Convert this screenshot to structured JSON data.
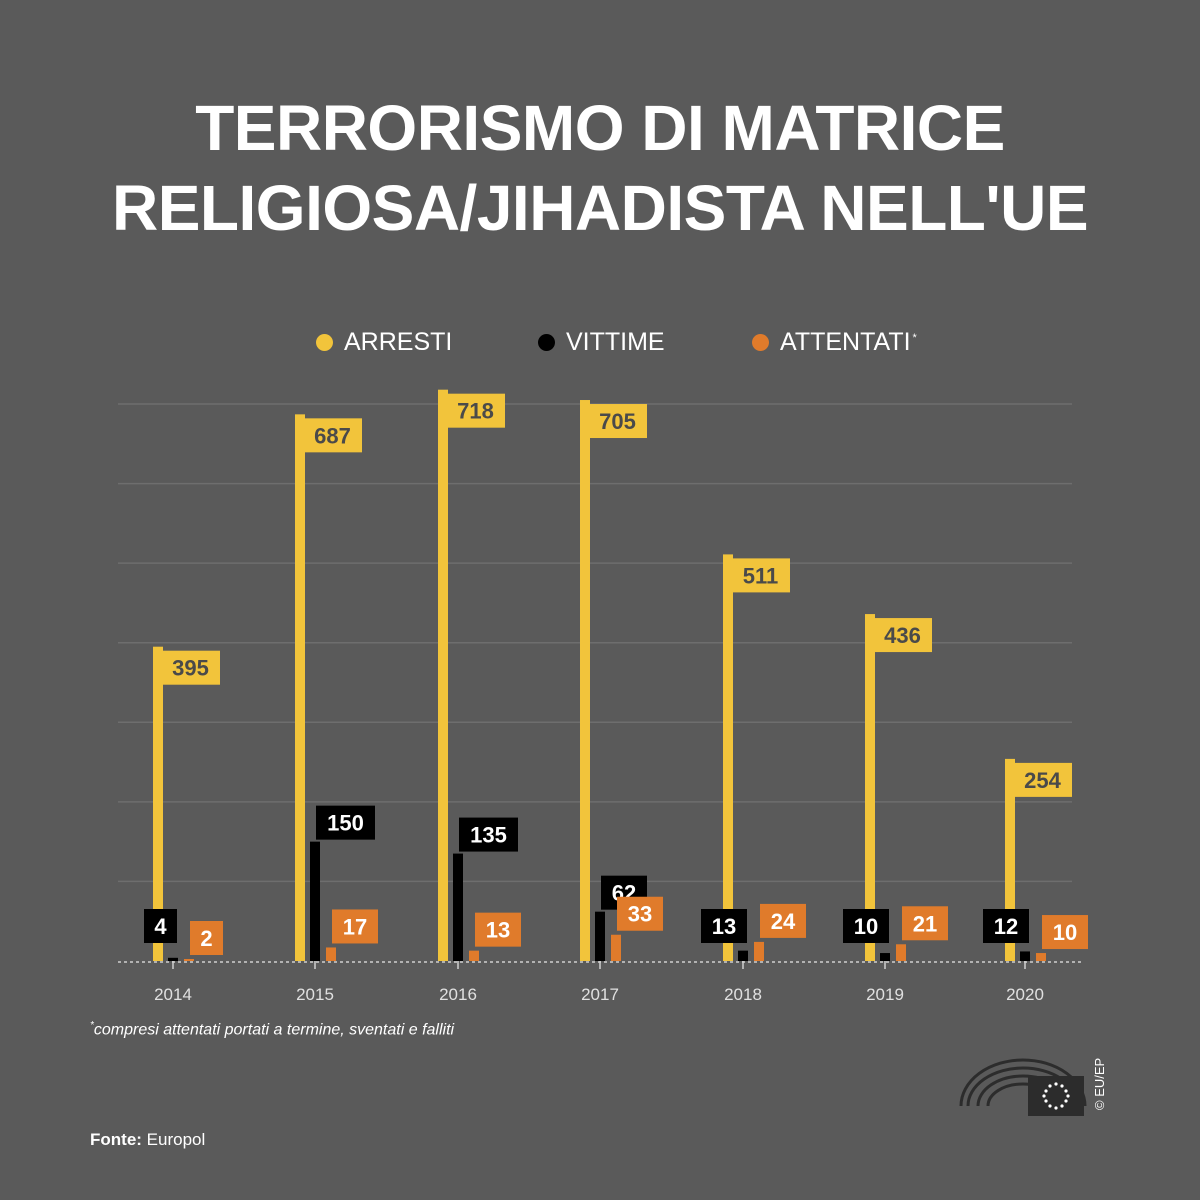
{
  "title": {
    "line1": "TERRORISMO DI MATRICE",
    "line2": "RELIGIOSA/JIHADISTA NELL'UE"
  },
  "legend": {
    "arrests": "ARRESTI",
    "victims": "VITTIME",
    "attacks": "ATTENTATI",
    "attacks_marker": "*"
  },
  "colors": {
    "background": "#5a5a5a",
    "arrests": "#f2c43b",
    "victims": "#000000",
    "attacks": "#e07b2b",
    "grid": "#6e6e6e"
  },
  "chart_data": {
    "type": "bar",
    "categories": [
      "2014",
      "2015",
      "2016",
      "2017",
      "2018",
      "2019",
      "2020"
    ],
    "series": [
      {
        "name": "ARRESTI",
        "values": [
          395,
          687,
          718,
          705,
          511,
          436,
          254
        ]
      },
      {
        "name": "VITTIME",
        "values": [
          4,
          150,
          135,
          62,
          13,
          10,
          12
        ]
      },
      {
        "name": "ATTENTATI",
        "values": [
          2,
          17,
          13,
          33,
          24,
          21,
          10
        ]
      }
    ],
    "ylim": [
      0,
      700
    ],
    "grid": true,
    "legend_position": "top"
  },
  "footnote": {
    "marker": "*",
    "text": "compresi attentati portati a termine, sventati e falliti"
  },
  "source": {
    "label": "Fonte:",
    "value": "Europol"
  },
  "credit": "© EU/EP",
  "logo_icon": "european-parliament-logo-icon"
}
